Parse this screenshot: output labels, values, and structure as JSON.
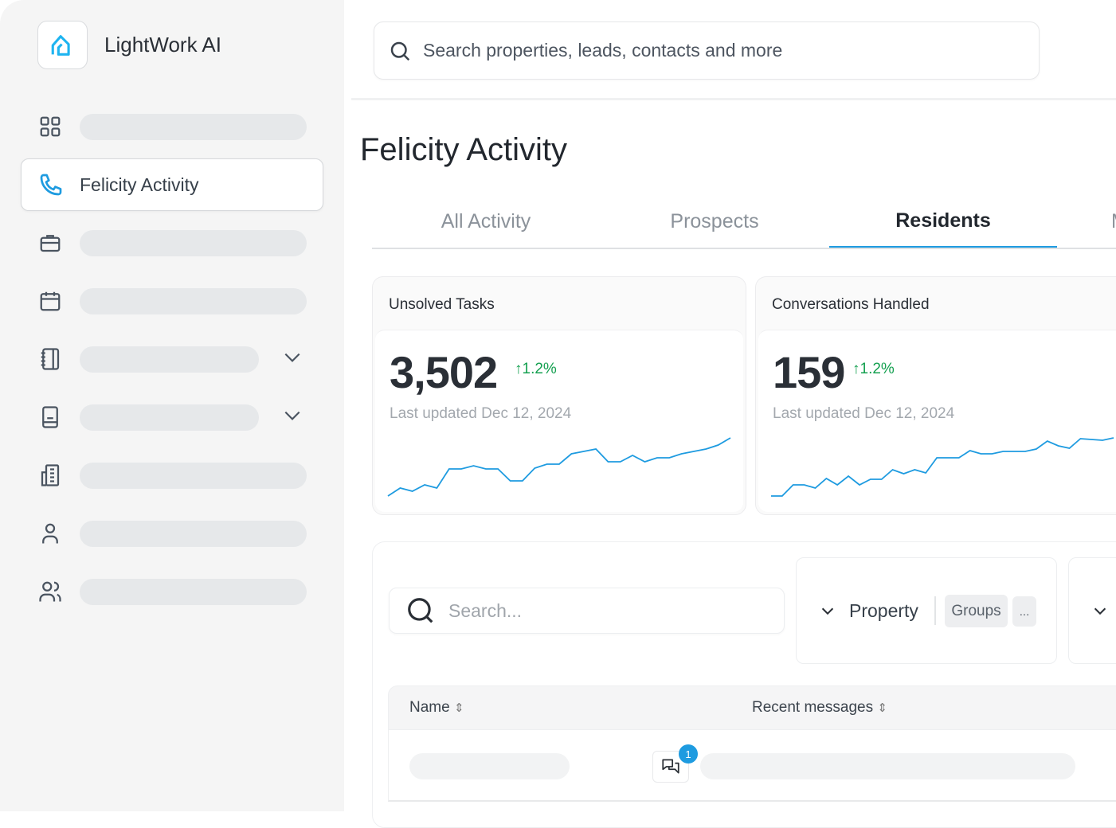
{
  "brand": {
    "name": "LightWork AI",
    "accent": "#1eb4f0"
  },
  "search": {
    "placeholder": "Search properties, leads, contacts and more"
  },
  "sidebar": {
    "active_label": "Felicity Activity",
    "items": [
      {
        "icon": "grid-icon"
      },
      {
        "icon": "phone-icon",
        "label": "Felicity Activity"
      },
      {
        "icon": "briefcase-icon"
      },
      {
        "icon": "calendar-icon"
      },
      {
        "icon": "notebook-icon",
        "expandable": true
      },
      {
        "icon": "book-icon",
        "expandable": true
      },
      {
        "icon": "building-icon"
      },
      {
        "icon": "user-icon"
      },
      {
        "icon": "users-icon"
      }
    ]
  },
  "page": {
    "title": "Felicity Activity"
  },
  "tabs": [
    {
      "label": "All Activity"
    },
    {
      "label": "Prospects"
    },
    {
      "label": "Residents",
      "active": true
    },
    {
      "label": "M"
    }
  ],
  "cards": [
    {
      "title": "Unsolved Tasks",
      "value": "3,502",
      "delta": "1.2%",
      "updated": "Last updated Dec 12, 2024",
      "trend": [
        0,
        10,
        6,
        14,
        10,
        34,
        34,
        38,
        34,
        34,
        19,
        19,
        35,
        40,
        40,
        53,
        56,
        59,
        43,
        43,
        51,
        43,
        48,
        48,
        53,
        56,
        59,
        64,
        73
      ]
    },
    {
      "title": "Conversations Handled",
      "value": "159",
      "delta": "1.2%",
      "updated": "Last updated Dec 12, 2024",
      "trend": [
        0,
        0,
        14,
        14,
        10,
        22,
        14,
        25,
        14,
        21,
        21,
        33,
        28,
        33,
        29,
        48,
        48,
        48,
        57,
        53,
        53,
        56,
        56,
        56,
        59,
        69,
        63,
        60,
        72,
        71,
        70,
        73
      ]
    }
  ],
  "filters": {
    "search_placeholder": "Search...",
    "property_label": "Property",
    "groups_chip": "Groups",
    "more_chip": "..."
  },
  "table": {
    "columns": [
      {
        "label": "Name"
      },
      {
        "label": "Recent messages"
      }
    ],
    "rows": [
      {
        "unread": "1"
      }
    ]
  },
  "colors": {
    "accent": "#1e9be0",
    "positive": "#15a050",
    "sparkline": "#1e9be0"
  }
}
